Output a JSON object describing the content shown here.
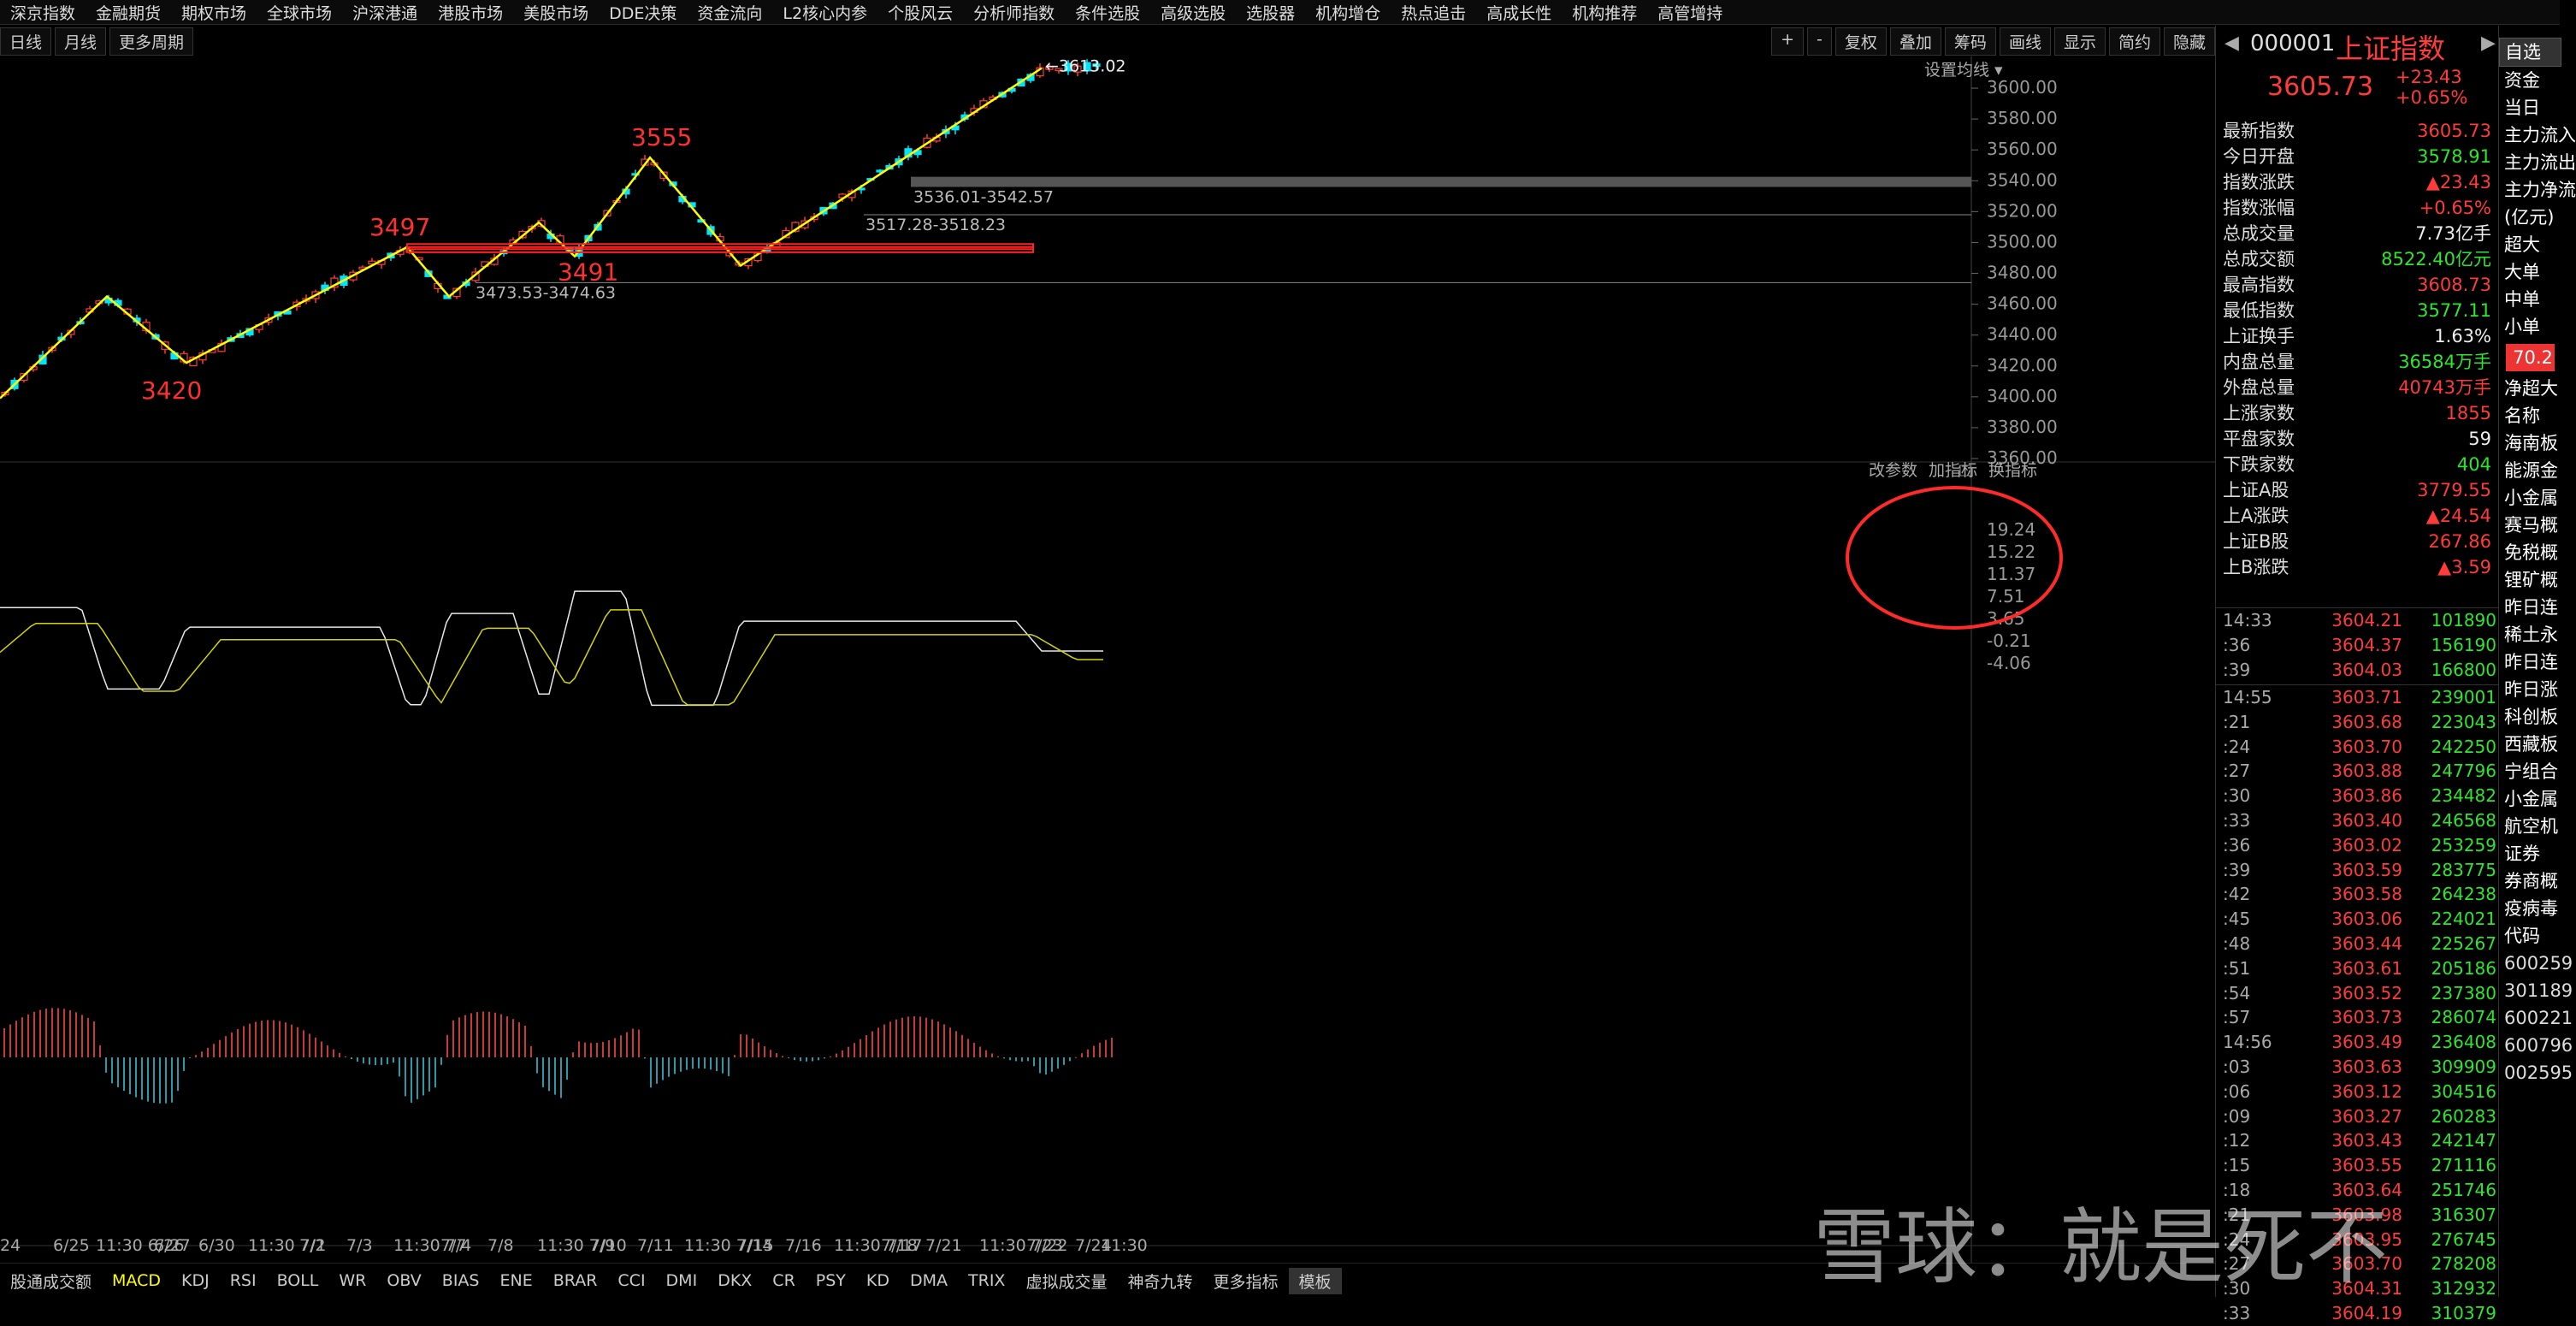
{
  "top_menu": [
    "深京指数",
    "金融期货",
    "期权市场",
    "全球市场",
    "沪深港通",
    "港股市场",
    "美股市场",
    "DDE决策",
    "资金流向",
    "L2核心内参",
    "个股风云",
    "分析师指数",
    "条件选股",
    "高级选股",
    "选股器",
    "机构增仓",
    "热点追击",
    "高成长性",
    "机构推荐",
    "高管增持"
  ],
  "toolbar": {
    "left_buttons": [
      "日线",
      "月线",
      "更多周期"
    ],
    "right_buttons": [
      "+",
      "-",
      "复权",
      "叠加",
      "筹码",
      "画线",
      "显示",
      "简约",
      "隐藏"
    ],
    "setting_label": "设置均线"
  },
  "chart_data": {
    "type": "candlestick",
    "y_ticks": [
      "3600.00",
      "3580.00",
      "3560.00",
      "3540.00",
      "3520.00",
      "3500.00",
      "3480.00",
      "3460.00",
      "3440.00",
      "3420.00",
      "3400.00",
      "3380.00",
      "3360.00"
    ],
    "ylim": [
      3360,
      3615
    ],
    "x_labels": [
      "24",
      "6/25",
      "11:30 6/26",
      "6/27",
      "6/30",
      "11:30 7/1",
      "7/2",
      "7/3",
      "11:30 7/4",
      "7/7",
      "7/8",
      "11:30 7/9",
      "7/10",
      "7/11",
      "11:30 7/14",
      "7/15",
      "7/16",
      "11:30 7/17",
      "7/18",
      "7/21",
      "11:30 7/22",
      "7/23",
      "7/24",
      "11:30"
    ],
    "annotations": {
      "high": "3613.02",
      "peak_labels": [
        "3420",
        "3497",
        "3491",
        "3555"
      ],
      "gap_labels": [
        "3536.01-3542.57",
        "3517.28-3518.23",
        "3473.53-3474.63"
      ]
    },
    "zigzag": [
      [
        0,
        3399
      ],
      [
        125,
        3465
      ],
      [
        218,
        3422
      ],
      [
        476,
        3497
      ],
      [
        525,
        3465
      ],
      [
        630,
        3513
      ],
      [
        672,
        3491
      ],
      [
        760,
        3555
      ],
      [
        866,
        3485
      ],
      [
        1218,
        3613
      ]
    ],
    "macd": {
      "y_ticks": [
        "19.24",
        "15.22",
        "11.37",
        "7.51",
        "3.65",
        "-0.21",
        "-4.06"
      ],
      "menu": [
        "改参数",
        "加指标",
        "换指标"
      ]
    }
  },
  "bottom_tabs": [
    "股通成交额",
    "MACD",
    "KDJ",
    "RSI",
    "BOLL",
    "WR",
    "OBV",
    "BIAS",
    "ENE",
    "BRAR",
    "CCI",
    "DMI",
    "DKX",
    "CR",
    "PSY",
    "KD",
    "DMA",
    "TRIX",
    "虚拟成交量",
    "神奇九转",
    "更多指标",
    "模板"
  ],
  "quote": {
    "code": "000001",
    "name": "上证指数",
    "price": "3605.73",
    "change": "+23.43",
    "change_pct": "+0.65%",
    "rows": [
      {
        "label": "最新指数",
        "value": "3605.73",
        "color": "red"
      },
      {
        "label": "今日开盘",
        "value": "3578.91",
        "color": "green"
      },
      {
        "label": "指数涨跌",
        "value": "▲23.43",
        "color": "red"
      },
      {
        "label": "指数涨幅",
        "value": "+0.65%",
        "color": "red"
      },
      {
        "label": "总成交量",
        "value": "7.73亿手",
        "color": "white"
      },
      {
        "label": "总成交额",
        "value": "8522.40亿元",
        "color": "green"
      },
      {
        "label": "最高指数",
        "value": "3608.73",
        "color": "red"
      },
      {
        "label": "最低指数",
        "value": "3577.11",
        "color": "green"
      },
      {
        "label": "上证换手",
        "value": "1.63%",
        "color": "white"
      },
      {
        "label": "内盘总量",
        "value": "36584万手",
        "color": "green"
      },
      {
        "label": "外盘总量",
        "value": "40743万手",
        "color": "red"
      },
      {
        "label": "上涨家数",
        "value": "1855",
        "color": "red"
      },
      {
        "label": "平盘家数",
        "value": "59",
        "color": "white"
      },
      {
        "label": "下跌家数",
        "value": "404",
        "color": "green"
      },
      {
        "label": "上证A股",
        "value": "3779.55",
        "color": "red"
      },
      {
        "label": "上A涨跌",
        "value": "▲24.54",
        "color": "red"
      },
      {
        "label": "上证B股",
        "value": "267.86",
        "color": "red"
      },
      {
        "label": "上B涨跌",
        "value": "▲3.59",
        "color": "red"
      }
    ],
    "ticks1": [
      [
        "14:33",
        "3604.21",
        "101890"
      ],
      [
        ":36",
        "3604.37",
        "156190"
      ],
      [
        ":39",
        "3604.03",
        "166800"
      ]
    ],
    "ticks2": [
      [
        "14:55",
        "3603.71",
        "239001"
      ],
      [
        ":21",
        "3603.68",
        "223043"
      ],
      [
        ":24",
        "3603.70",
        "242250"
      ],
      [
        ":27",
        "3603.88",
        "247796"
      ],
      [
        ":30",
        "3603.86",
        "234482"
      ],
      [
        ":33",
        "3603.40",
        "246568"
      ],
      [
        ":36",
        "3603.02",
        "253259"
      ],
      [
        ":39",
        "3603.59",
        "283775"
      ],
      [
        ":42",
        "3603.58",
        "264238"
      ],
      [
        ":45",
        "3603.06",
        "224021"
      ],
      [
        ":48",
        "3603.44",
        "225267"
      ],
      [
        ":51",
        "3603.61",
        "205186"
      ],
      [
        ":54",
        "3603.52",
        "237380"
      ],
      [
        ":57",
        "3603.73",
        "286074"
      ],
      [
        "14:56",
        "3603.49",
        "236408"
      ],
      [
        ":03",
        "3603.63",
        "309909"
      ],
      [
        ":06",
        "3603.12",
        "304516"
      ],
      [
        ":09",
        "3603.27",
        "260283"
      ],
      [
        ":12",
        "3603.43",
        "242147"
      ],
      [
        ":15",
        "3603.55",
        "271116"
      ],
      [
        ":18",
        "3603.64",
        "251746"
      ],
      [
        ":21",
        "3603.98",
        "316307"
      ],
      [
        ":24",
        "3603.95",
        "276745"
      ],
      [
        ":27",
        "3603.70",
        "278208"
      ],
      [
        ":30",
        "3604.31",
        "312932"
      ],
      [
        ":33",
        "3604.19",
        "310379"
      ]
    ]
  },
  "sector_panel": {
    "items": [
      "资金",
      "当日",
      "主力流入",
      "主力流出",
      "主力净流",
      "(亿元)",
      "超大",
      "大单",
      "中单",
      "小单",
      "70.2",
      "净超大",
      "名称",
      "海南板",
      "能源金",
      "小金属",
      "赛马概",
      "免税概",
      "锂矿概",
      "昨日连",
      "稀土永",
      "昨日连",
      "昨日涨",
      "科创板",
      "西藏板",
      "宁组合",
      "小金属",
      "航空机",
      "证券",
      "券商概",
      "疫病毒",
      "代码",
      "600259",
      "301189",
      "600221",
      "600796",
      "002595"
    ],
    "watch_label": "自选"
  },
  "watermark": "雪球：就是死不"
}
